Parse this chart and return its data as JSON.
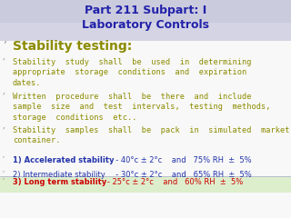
{
  "title_line1": "Part 211 Subpart: I",
  "title_line2": "Laboratory Controls",
  "title_color": "#2222AA",
  "bg_top_color": "#D4D4E4",
  "bg_body_color": "#F8F8F8",
  "olive_color": "#8B8B00",
  "blue_color": "#2233AA",
  "red_color": "#CC0000",
  "green_row_color": "#DDEECC",
  "bullet_color": "#AAAAAA",
  "item0_text": "Stability testing:",
  "item0_color": "#8B8B00",
  "item1_text": "Stability  study  shall  be  used  in  determining\nappropriate  storage  conditions  and  expiration\ndates.",
  "item1_color": "#8B8B00",
  "item2_text": "Written  procedure  shall  be  there  and  include\nsample  size  and  test  intervals,  testing  methods,\nstorage  conditions  etc..",
  "item2_color": "#8B8B00",
  "item3_text": "Stability  samples  shall  be  pack  in  simulated  market\ncontainer.",
  "item3_color": "#8B8B00",
  "n1_label": "1) Accelerated stability",
  "n1_detail": "  - 40°c ± 2°c    and   75% RH  ±  5%",
  "n1_label_color": "#2233AA",
  "n1_detail_color": "#2233AA",
  "n2_label": "2) Intermediate stability",
  "n2_detail": "  - 30°c ± 2°c    and   65% RH  ±  5%",
  "n2_label_color": "#2233AA",
  "n2_detail_color": "#2233AA",
  "n3_label": "3) Long term stability",
  "n3_detail": "   - 25°c ± 2°c    and   60% RH  ±  5%",
  "n3_label_color": "#CC0000",
  "n3_detail_color": "#CC0000"
}
